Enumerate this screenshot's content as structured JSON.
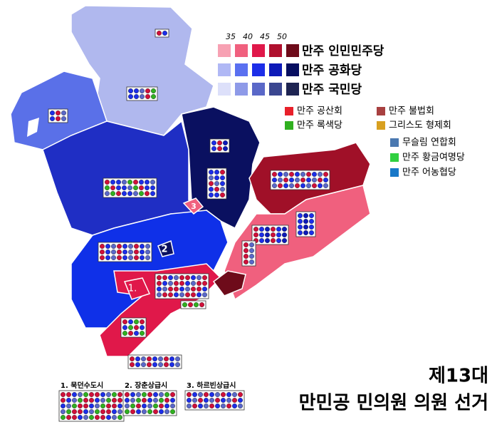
{
  "title": {
    "line1": "제13대",
    "line2": "만민공 민의원 의원 선거"
  },
  "legend": {
    "thresholds": [
      "35",
      "40",
      "45",
      "50"
    ],
    "parties": [
      {
        "name": "만주 인민민주당",
        "colors": [
          "#f7a1b3",
          "#f0607e",
          "#e0184a",
          "#b0102e",
          "#6e0b1a"
        ]
      },
      {
        "name": "만주 공화당",
        "colors": [
          "#b0b8f5",
          "#5a70f0",
          "#1c2ee8",
          "#0d1ab8",
          "#060e60"
        ]
      },
      {
        "name": "만주 국민당",
        "colors": [
          "#dde0fa",
          "#8e9ae8",
          "#5a68c8",
          "#3a4690",
          "#1e2452"
        ]
      }
    ],
    "minor": [
      {
        "name": "만주 공산회",
        "color": "#e8202a"
      },
      {
        "name": "만주 불법회",
        "color": "#a84040"
      },
      {
        "name": "만주 록색당",
        "color": "#30b020"
      },
      {
        "name": "그리스도 형제회",
        "color": "#d8a020"
      },
      {
        "name": "무슬림 연합회",
        "color": "#4a78b0"
      },
      {
        "name": "만주 황금여명당",
        "color": "#30d040"
      },
      {
        "name": "만주 어농협당",
        "color": "#1878c8"
      }
    ]
  },
  "cities": [
    "1. 묵던수도시",
    "2. 장춘상급시",
    "3. 하르빈상급시"
  ],
  "map_labels": [
    "1.",
    "2",
    "3"
  ]
}
